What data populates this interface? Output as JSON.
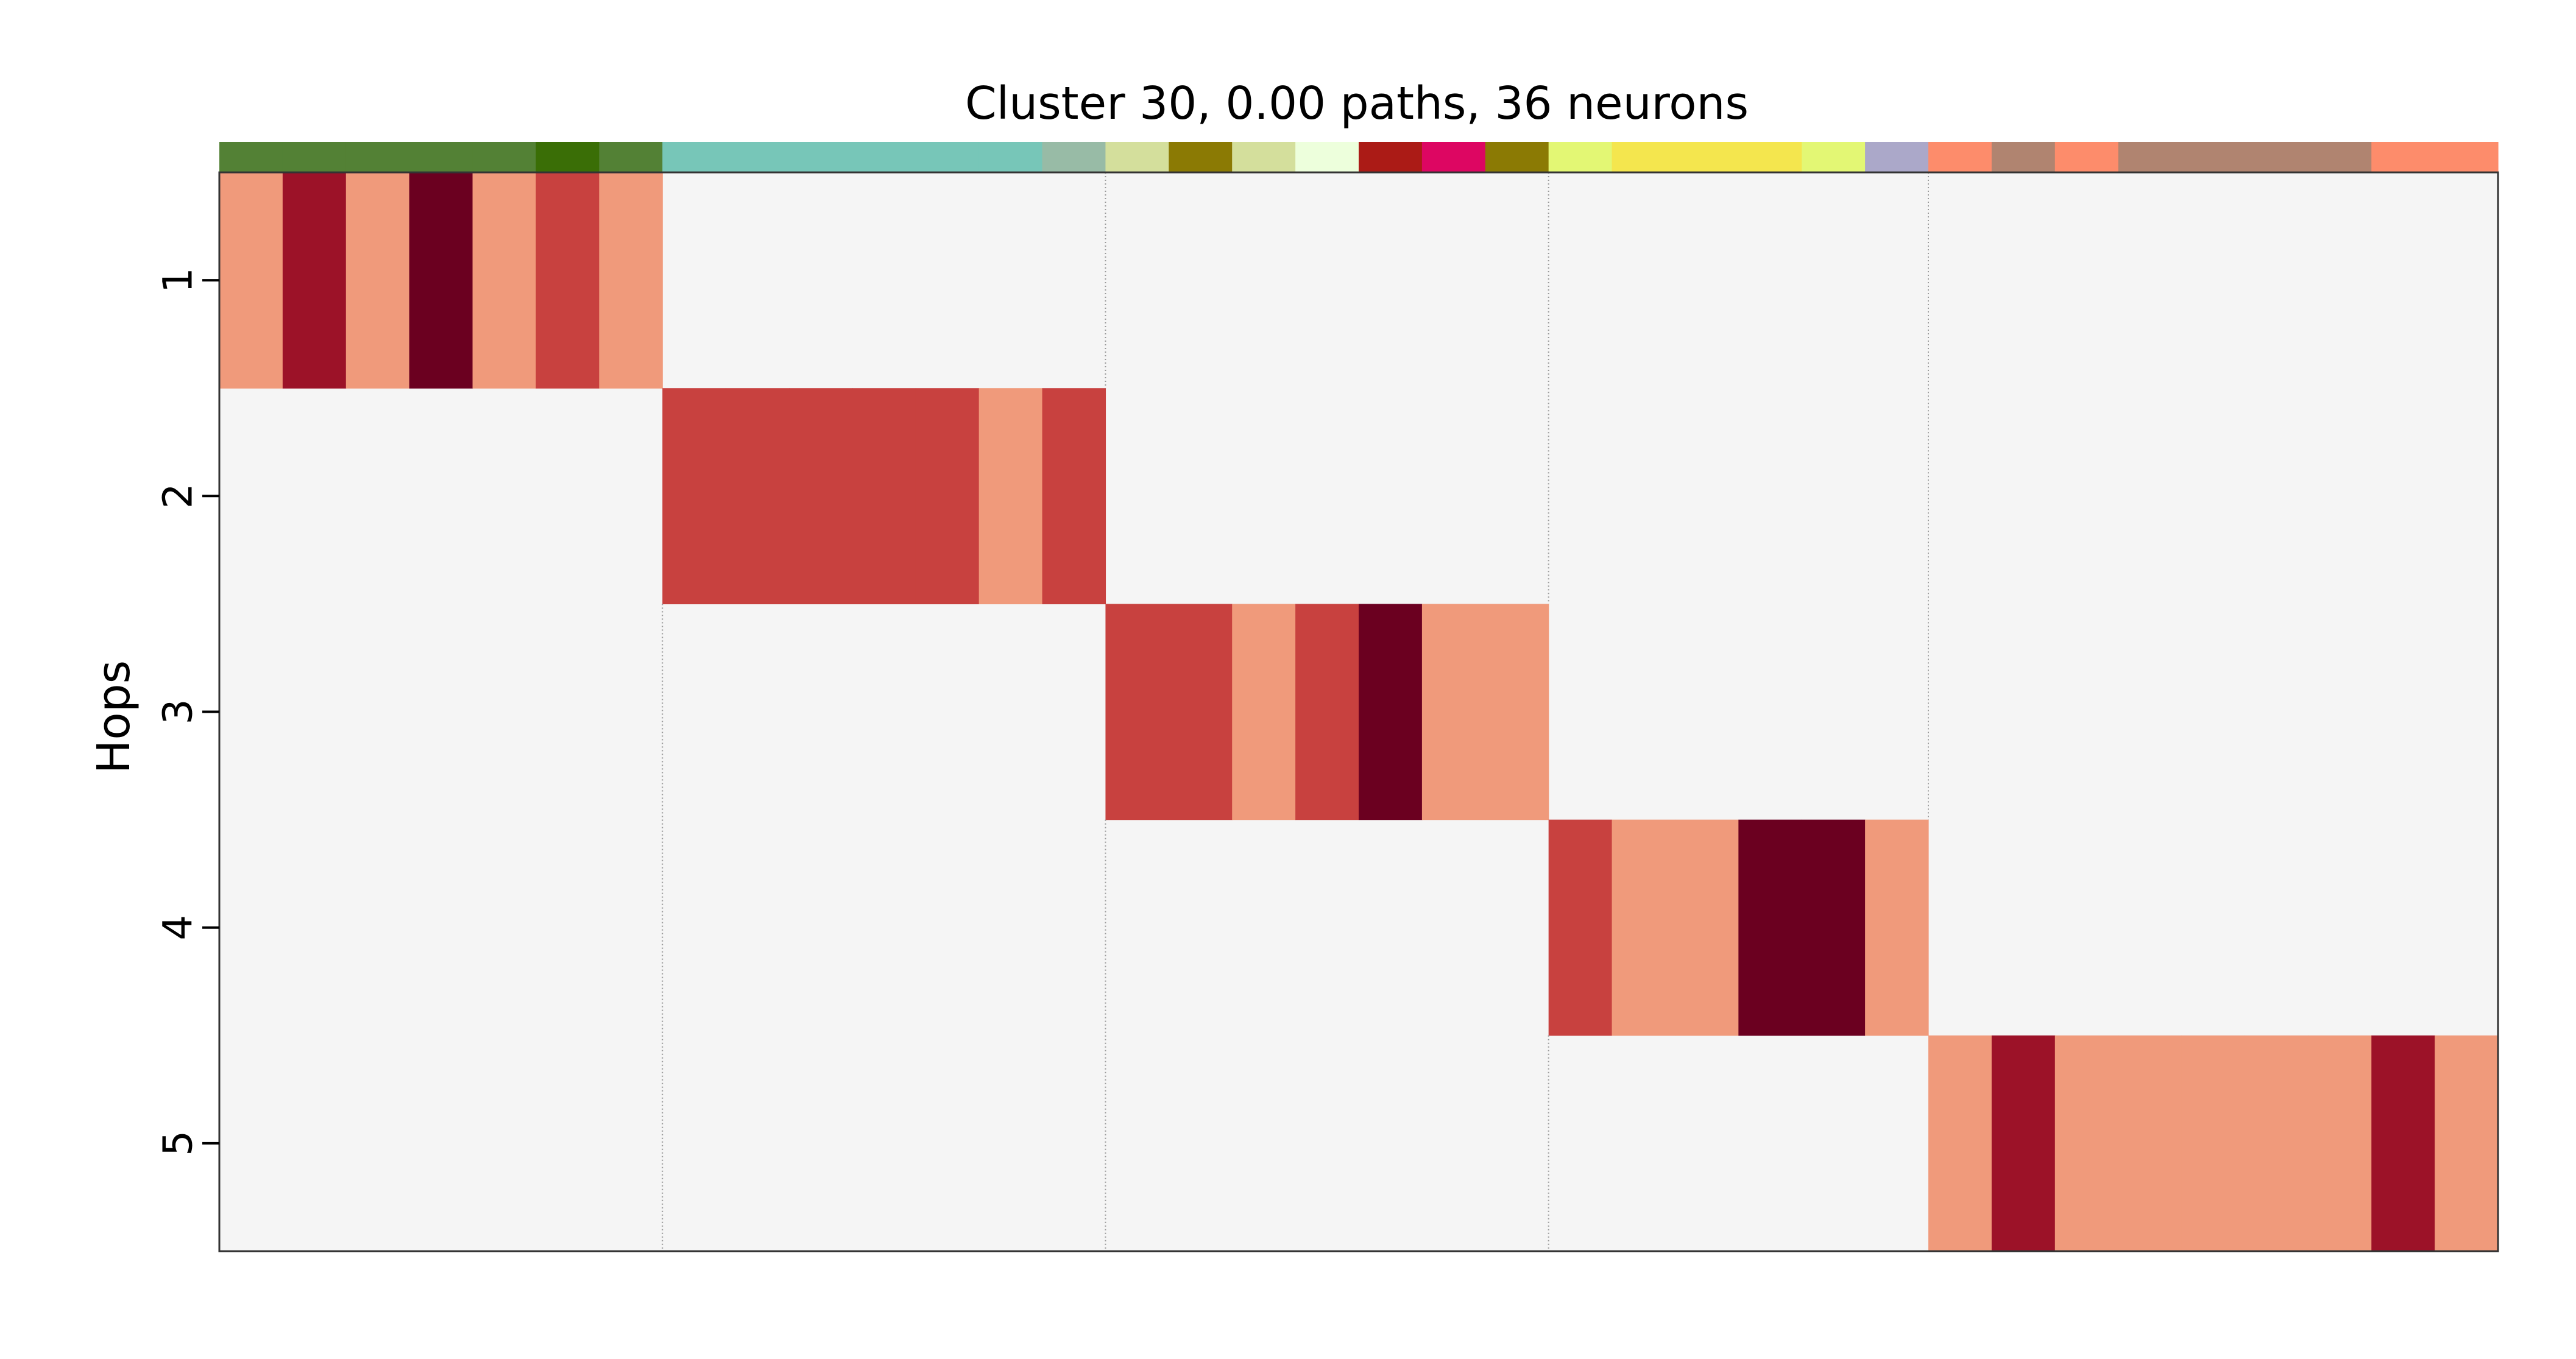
{
  "chart_data": {
    "type": "heatmap",
    "title": "Cluster 30, 0.00 paths, 36 neurons",
    "ylabel": "Hops",
    "xlabel": "",
    "y_ticks": [
      "1",
      "2",
      "3",
      "4",
      "5"
    ],
    "n_columns": 36,
    "background_color": "#f5f5f5",
    "value_palette": {
      "1": "#f09a7b",
      "2": "#c8413f",
      "3": "#9c1228",
      "4": "#6b0020"
    },
    "column_color_bar": [
      "#538135",
      "#538135",
      "#538135",
      "#538135",
      "#538135",
      "#3a6e06",
      "#538135",
      "#77c6b8",
      "#77c6b8",
      "#77c6b8",
      "#77c6b8",
      "#77c6b8",
      "#77c6b8",
      "#98bba6",
      "#d4df9c",
      "#8b7a04",
      "#d4df9c",
      "#edffdc",
      "#ab1b16",
      "#dd0662",
      "#8b7a04",
      "#e3f774",
      "#f4e64e",
      "#f4e64e",
      "#f4e64e",
      "#e3f774",
      "#aba8c9",
      "#fd8c6b",
      "#b08470",
      "#fd8c6b",
      "#b08470",
      "#b08470",
      "#b08470",
      "#b08470",
      "#fd8c6b",
      "#fd8c6b"
    ],
    "group_dividers_after_column": [
      7,
      14,
      21,
      27
    ],
    "rows": [
      [
        1,
        3,
        1,
        4,
        1,
        2,
        1,
        0,
        0,
        0,
        0,
        0,
        0,
        0,
        0,
        0,
        0,
        0,
        0,
        0,
        0,
        0,
        0,
        0,
        0,
        0,
        0,
        0,
        0,
        0,
        0,
        0,
        0,
        0,
        0,
        0
      ],
      [
        0,
        0,
        0,
        0,
        0,
        0,
        0,
        2,
        2,
        2,
        2,
        2,
        1,
        2,
        0,
        0,
        0,
        0,
        0,
        0,
        0,
        0,
        0,
        0,
        0,
        0,
        0,
        0,
        0,
        0,
        0,
        0,
        0,
        0,
        0,
        0
      ],
      [
        0,
        0,
        0,
        0,
        0,
        0,
        0,
        0,
        0,
        0,
        0,
        0,
        0,
        0,
        2,
        2,
        1,
        2,
        4,
        1,
        1,
        0,
        0,
        0,
        0,
        0,
        0,
        0,
        0,
        0,
        0,
        0,
        0,
        0,
        0,
        0
      ],
      [
        0,
        0,
        0,
        0,
        0,
        0,
        0,
        0,
        0,
        0,
        0,
        0,
        0,
        0,
        0,
        0,
        0,
        0,
        0,
        0,
        0,
        2,
        1,
        1,
        4,
        4,
        1,
        0,
        0,
        0,
        0,
        0,
        0,
        0,
        0,
        0
      ],
      [
        0,
        0,
        0,
        0,
        0,
        0,
        0,
        0,
        0,
        0,
        0,
        0,
        0,
        0,
        0,
        0,
        0,
        0,
        0,
        0,
        0,
        0,
        0,
        0,
        0,
        0,
        0,
        1,
        3,
        1,
        1,
        1,
        1,
        1,
        3,
        1
      ]
    ]
  }
}
